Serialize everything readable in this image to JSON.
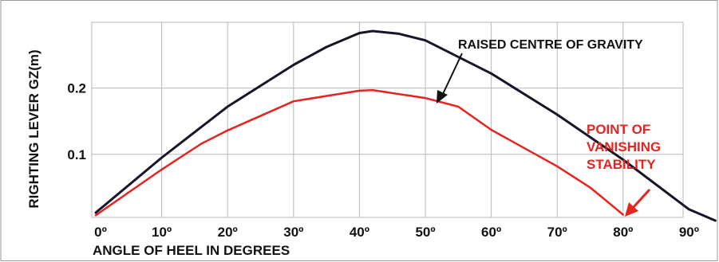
{
  "chart_data": {
    "type": "line",
    "title": "",
    "xlabel": "ANGLE OF HEEL IN DEGREES",
    "ylabel": "RIGHTING LEVER GZ(m)",
    "x_ticks": [
      "0º",
      "10º",
      "20º",
      "30º",
      "40º",
      "50º",
      "60º",
      "70º",
      "80º",
      "90º"
    ],
    "y_ticks": [
      "0.1",
      "0.2"
    ],
    "xlim": [
      0,
      90
    ],
    "ylim": [
      0,
      0.29
    ],
    "grid": true,
    "series": [
      {
        "name": "",
        "color": "#161629",
        "points": [
          [
            0,
            0.012
          ],
          [
            10,
            0.095
          ],
          [
            20,
            0.172
          ],
          [
            30,
            0.235
          ],
          [
            35,
            0.262
          ],
          [
            40,
            0.283
          ],
          [
            42,
            0.286
          ],
          [
            46,
            0.282
          ],
          [
            50,
            0.272
          ],
          [
            60,
            0.222
          ],
          [
            70,
            0.16
          ],
          [
            80,
            0.092
          ],
          [
            90,
            0.017
          ],
          [
            94,
            0.0
          ]
        ]
      },
      {
        "name": "",
        "color": "#e52421",
        "points": [
          [
            0,
            0.008
          ],
          [
            10,
            0.077
          ],
          [
            16,
            0.116
          ],
          [
            20,
            0.136
          ],
          [
            30,
            0.18
          ],
          [
            40,
            0.196
          ],
          [
            42,
            0.197
          ],
          [
            50,
            0.185
          ],
          [
            55,
            0.172
          ],
          [
            60,
            0.137
          ],
          [
            70,
            0.082
          ],
          [
            75,
            0.05
          ],
          [
            80,
            0.009
          ]
        ]
      }
    ],
    "annotations": {
      "raised_cg": "RAISED CENTRE OF GRAVITY",
      "vanishing_line1": "POINT OF",
      "vanishing_line2": "VANISHING",
      "vanishing_line3": "STABILITY"
    }
  },
  "colors": {
    "grid": "#b8b8b8",
    "black_curve": "#161629",
    "red_curve": "#e52421",
    "frame_border": "#9a9a9a"
  }
}
